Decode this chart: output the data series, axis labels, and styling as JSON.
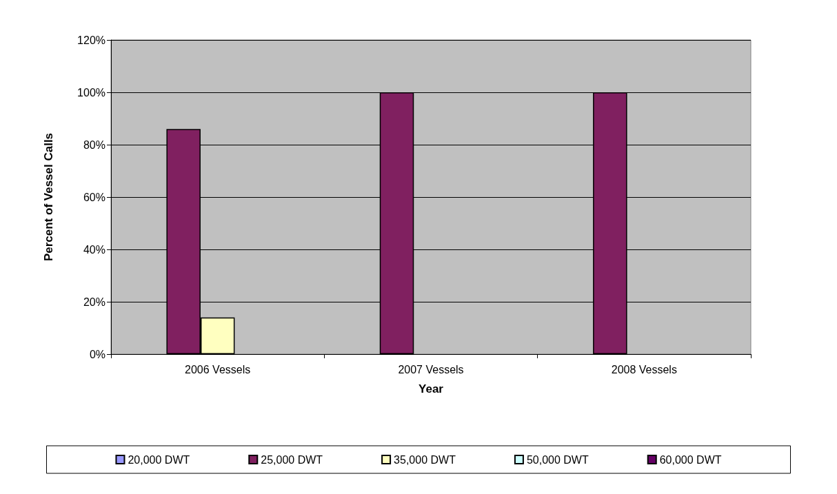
{
  "chart_data": {
    "type": "bar",
    "xlabel": "Year",
    "ylabel": "Percent of Vessel Calls",
    "categories": [
      "2006 Vessels",
      "2007 Vessels",
      "2008 Vessels"
    ],
    "series": [
      {
        "name": "20,000 DWT",
        "color": "#9999ff",
        "values": [
          0,
          0,
          0
        ]
      },
      {
        "name": "25,000 DWT",
        "color": "#802060",
        "values": [
          86,
          100,
          100
        ]
      },
      {
        "name": "35,000 DWT",
        "color": "#ffffc0",
        "values": [
          14,
          0,
          0
        ]
      },
      {
        "name": "50,000 DWT",
        "color": "#ccffff",
        "values": [
          0,
          0,
          0
        ]
      },
      {
        "name": "60,000 DWT",
        "color": "#660066",
        "values": [
          0,
          0,
          0
        ]
      }
    ],
    "ylim": [
      0,
      120
    ],
    "yticks": [
      {
        "value": 0,
        "label": "0%"
      },
      {
        "value": 20,
        "label": "20%"
      },
      {
        "value": 40,
        "label": "40%"
      },
      {
        "value": 60,
        "label": "60%"
      },
      {
        "value": 80,
        "label": "80%"
      },
      {
        "value": 100,
        "label": "100%"
      },
      {
        "value": 120,
        "label": "120%"
      }
    ],
    "grid": "y",
    "legend": "bottom"
  }
}
